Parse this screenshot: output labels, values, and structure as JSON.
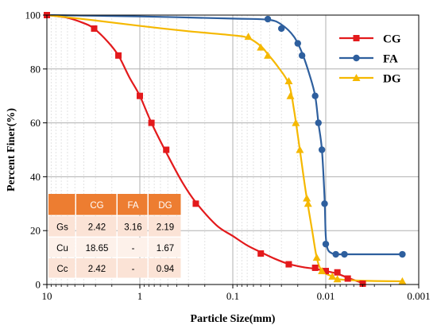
{
  "chart_data": {
    "type": "line",
    "xlabel": "Particle Size(mm)",
    "ylabel": "Percent Finer(%)",
    "x_scale": "log",
    "x_reversed": true,
    "xlim": [
      10,
      0.001
    ],
    "ylim": [
      0,
      100
    ],
    "x_ticks": [
      10,
      1,
      0.1,
      0.01,
      0.001
    ],
    "x_tick_labels": [
      "10",
      "1",
      "0.1",
      "0.01",
      "0.001"
    ],
    "y_ticks": [
      0,
      20,
      40,
      60,
      80,
      100
    ],
    "y_tick_labels": [
      "0",
      "20",
      "40",
      "60",
      "80",
      "100"
    ],
    "grid": true,
    "legend_position": "top-right",
    "series": [
      {
        "name": "CG",
        "color": "#e31a1c",
        "marker": "square",
        "points": [
          [
            10,
            100
          ],
          [
            3.1,
            95
          ],
          [
            1.7,
            85
          ],
          [
            1.0,
            70
          ],
          [
            0.75,
            60
          ],
          [
            0.52,
            50
          ],
          [
            0.25,
            30
          ],
          [
            0.05,
            11.5
          ],
          [
            0.025,
            7.5
          ],
          [
            0.013,
            6.2
          ],
          [
            0.01,
            5
          ],
          [
            0.0075,
            4.5
          ],
          [
            0.0058,
            2.2
          ],
          [
            0.004,
            0.3
          ]
        ],
        "curve": [
          [
            10,
            100
          ],
          [
            6,
            99
          ],
          [
            4,
            97
          ],
          [
            3.1,
            95
          ],
          [
            2.2,
            90
          ],
          [
            1.7,
            85
          ],
          [
            1.3,
            77
          ],
          [
            1.0,
            70
          ],
          [
            0.75,
            60
          ],
          [
            0.52,
            49
          ],
          [
            0.35,
            38
          ],
          [
            0.25,
            30.5
          ],
          [
            0.15,
            22
          ],
          [
            0.1,
            18
          ],
          [
            0.07,
            14.5
          ],
          [
            0.05,
            12
          ],
          [
            0.035,
            9.5
          ],
          [
            0.025,
            7.6
          ],
          [
            0.018,
            6.5
          ],
          [
            0.013,
            5.8
          ],
          [
            0.01,
            5
          ],
          [
            0.0075,
            4
          ],
          [
            0.0058,
            2.5
          ],
          [
            0.004,
            0.5
          ]
        ]
      },
      {
        "name": "FA",
        "color": "#2e5f9e",
        "marker": "circle",
        "points": [
          [
            0.042,
            98.5
          ],
          [
            0.03,
            95
          ],
          [
            0.02,
            89.5
          ],
          [
            0.018,
            85
          ],
          [
            0.013,
            70
          ],
          [
            0.012,
            60
          ],
          [
            0.011,
            50
          ],
          [
            0.0103,
            30
          ],
          [
            0.01,
            15
          ],
          [
            0.0078,
            11.2
          ],
          [
            0.0063,
            11.2
          ],
          [
            0.0015,
            11.2
          ]
        ],
        "curve": [
          [
            10,
            100
          ],
          [
            1,
            99.5
          ],
          [
            0.1,
            98.7
          ],
          [
            0.042,
            98.3
          ],
          [
            0.03,
            96.5
          ],
          [
            0.022,
            92
          ],
          [
            0.018,
            86
          ],
          [
            0.015,
            78
          ],
          [
            0.013,
            70
          ],
          [
            0.012,
            60
          ],
          [
            0.011,
            50
          ],
          [
            0.0103,
            32
          ],
          [
            0.01,
            18
          ],
          [
            0.0095,
            13
          ],
          [
            0.0085,
            11.5
          ],
          [
            0.0078,
            11.2
          ],
          [
            0.0063,
            11.2
          ],
          [
            0.0015,
            11.2
          ]
        ]
      },
      {
        "name": "DG",
        "color": "#f5b800",
        "marker": "triangle",
        "points": [
          [
            0.068,
            92
          ],
          [
            0.05,
            88
          ],
          [
            0.042,
            85
          ],
          [
            0.025,
            75.5
          ],
          [
            0.024,
            70
          ],
          [
            0.021,
            60
          ],
          [
            0.019,
            50
          ],
          [
            0.016,
            32
          ],
          [
            0.0155,
            30
          ],
          [
            0.0125,
            10
          ],
          [
            0.011,
            5
          ],
          [
            0.0085,
            3
          ],
          [
            0.0075,
            2
          ],
          [
            0.0015,
            1.2
          ]
        ],
        "curve": [
          [
            10,
            100
          ],
          [
            3,
            98
          ],
          [
            1,
            96
          ],
          [
            0.3,
            94
          ],
          [
            0.1,
            92.5
          ],
          [
            0.068,
            91.5
          ],
          [
            0.05,
            88.5
          ],
          [
            0.042,
            85.5
          ],
          [
            0.033,
            81
          ],
          [
            0.025,
            74.5
          ],
          [
            0.022,
            65
          ],
          [
            0.019,
            50
          ],
          [
            0.0165,
            35
          ],
          [
            0.014,
            20
          ],
          [
            0.0125,
            10
          ],
          [
            0.011,
            5
          ],
          [
            0.0085,
            3
          ],
          [
            0.0075,
            2
          ],
          [
            0.004,
            1.4
          ],
          [
            0.0015,
            1.2
          ]
        ]
      }
    ],
    "table": {
      "headers": [
        "",
        "CG",
        "FA",
        "DG"
      ],
      "rows": [
        [
          "Gs",
          "2.42",
          "3.16",
          "2.19"
        ],
        [
          "Cu",
          "18.65",
          "-",
          "1.67"
        ],
        [
          "Cc",
          "2.42",
          "-",
          "0.94"
        ]
      ],
      "header_color": "#ed7d31",
      "row_colors": [
        "#fbe3d6",
        "#fdf1ea",
        "#fbe3d6"
      ]
    }
  }
}
